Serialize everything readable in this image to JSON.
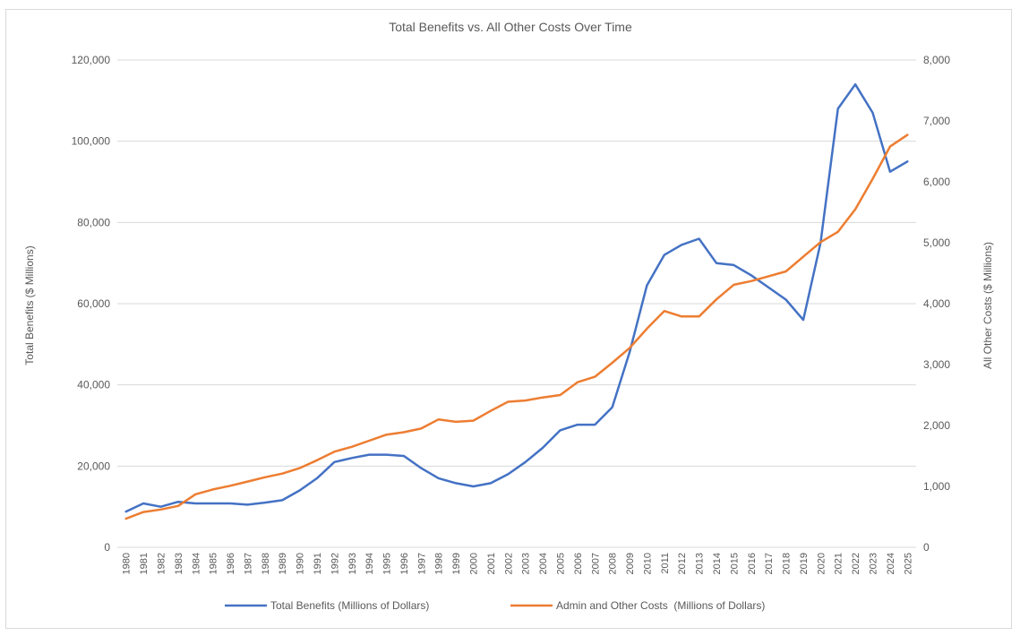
{
  "chart_data": {
    "type": "line",
    "title": "Total Benefits vs. All Other Costs Over Time",
    "ylabel": "Total Benefits ($ Millions)",
    "y2label": "All Other Costs ($ Millions)",
    "ylim": [
      0,
      120000
    ],
    "y2lim": [
      0,
      8000
    ],
    "yticks": [
      0,
      20000,
      40000,
      60000,
      80000,
      100000,
      120000
    ],
    "yticks_labels": [
      "0",
      "20,000",
      "40,000",
      "60,000",
      "80,000",
      "100,000",
      "120,000"
    ],
    "y2ticks": [
      0,
      1000,
      2000,
      3000,
      4000,
      5000,
      6000,
      7000,
      8000
    ],
    "y2ticks_labels": [
      "0",
      "1,000",
      "2,000",
      "3,000",
      "4,000",
      "5,000",
      "6,000",
      "7,000",
      "8,000"
    ],
    "grid": true,
    "legend_position": "bottom",
    "x": [
      "1980",
      "1981",
      "1982",
      "1983",
      "1984",
      "1985",
      "1986",
      "1987",
      "1988",
      "1989",
      "1990",
      "1991",
      "1992",
      "1993",
      "1994",
      "1995",
      "1996",
      "1997",
      "1998",
      "1999",
      "2000",
      "2001",
      "2002",
      "2003",
      "2004",
      "2005",
      "2006",
      "2007",
      "2008",
      "2009",
      "2010",
      "2011",
      "2012",
      "2013",
      "2014",
      "2015",
      "2016",
      "2017",
      "2018",
      "2019",
      "2020",
      "2021",
      "2022",
      "2023",
      "2024",
      "2025"
    ],
    "series": [
      {
        "name": "Total Benefits (Millions of Dollars)",
        "axis": "left",
        "color": "#4472c4",
        "values": [
          8800,
          10800,
          10000,
          11200,
          10800,
          10800,
          10800,
          10500,
          11000,
          11600,
          14000,
          17000,
          21000,
          22000,
          22800,
          22800,
          22500,
          19500,
          17000,
          15800,
          15000,
          15800,
          18000,
          21000,
          24500,
          28800,
          30200,
          30200,
          34500,
          48000,
          64500,
          72000,
          74500,
          76000,
          70000,
          69500,
          67000,
          64000,
          61000,
          56000,
          75000,
          108000,
          114000,
          107000,
          92500,
          95000
        ]
      },
      {
        "name": "Admin and Other Costs  (Millions of Dollars)",
        "axis": "right",
        "color": "#ed7d31",
        "values": [
          470,
          580,
          620,
          680,
          870,
          950,
          1010,
          1080,
          1150,
          1210,
          1300,
          1430,
          1570,
          1650,
          1750,
          1850,
          1890,
          1950,
          2100,
          2060,
          2080,
          2240,
          2390,
          2410,
          2460,
          2500,
          2710,
          2800,
          3030,
          3270,
          3590,
          3880,
          3790,
          3790,
          4070,
          4310,
          4370,
          4450,
          4530,
          4770,
          5010,
          5180,
          5550,
          6050,
          6580,
          6770
        ]
      }
    ]
  }
}
